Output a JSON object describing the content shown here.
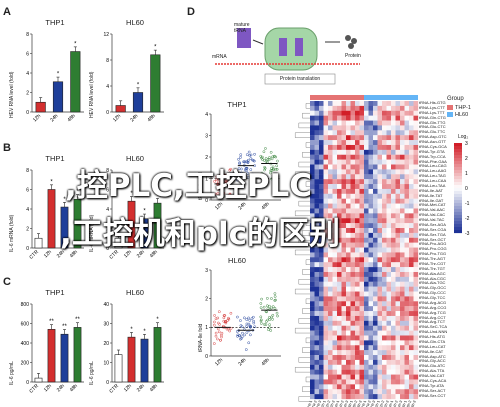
{
  "panels": {
    "A": {
      "label": "A",
      "thp1": {
        "title": "THP1",
        "ylabel": "HEV RNA level (fold)",
        "categories": [
          "12h",
          "24h",
          "48h"
        ],
        "values": [
          1.0,
          3.1,
          6.2
        ],
        "ylim": [
          0,
          8
        ],
        "yticks": [
          "0",
          "2",
          "4",
          "6",
          "8"
        ],
        "colors": [
          "#d32f2f",
          "#1f3f9a",
          "#2e7d32"
        ],
        "stars": [
          "",
          "*",
          "*"
        ]
      },
      "hl60": {
        "title": "HL60",
        "ylabel": "HEV RNA level (fold)",
        "categories": [
          "12h",
          "24h",
          "48h"
        ],
        "values": [
          1.0,
          3.0,
          8.8
        ],
        "ylim": [
          0,
          12
        ],
        "yticks": [
          "0",
          "4",
          "8",
          "12"
        ],
        "colors": [
          "#d32f2f",
          "#1f3f9a",
          "#2e7d32"
        ],
        "stars": [
          "",
          "*",
          "*"
        ]
      }
    },
    "B": {
      "label": "B",
      "thp1": {
        "title": "THP1",
        "ylabel": "IL-6 mRNA (fold)",
        "categories": [
          "CTR",
          "12h",
          "24h",
          "48h"
        ],
        "values": [
          1.0,
          6.0,
          4.2,
          5.0
        ],
        "ylim": [
          0,
          8
        ],
        "yticks": [
          "0",
          "2",
          "4",
          "6",
          "8"
        ],
        "colors": [
          "#ffffff",
          "#d32f2f",
          "#1f3f9a",
          "#2e7d32"
        ],
        "stars": [
          "",
          "*",
          "*",
          "*"
        ]
      },
      "hl60": {
        "title": "HL60",
        "ylabel": "IL-6 mRNA (fold)",
        "categories": [
          "CTR",
          "12h",
          "24h",
          "48h"
        ],
        "values": [
          1.0,
          4.8,
          3.0,
          4.6
        ],
        "ylim": [
          0,
          8
        ],
        "yticks": [
          "0",
          "2",
          "4",
          "6",
          "8"
        ],
        "colors": [
          "#ffffff",
          "#d32f2f",
          "#1f3f9a",
          "#2e7d32"
        ],
        "stars": [
          "",
          "*",
          "*",
          "*"
        ]
      }
    },
    "C": {
      "label": "C",
      "thp1": {
        "title": "THP1",
        "ylabel": "IL-6 pg/mL",
        "categories": [
          "CTR",
          "12h",
          "24h",
          "48h"
        ],
        "values": [
          40,
          540,
          490,
          560
        ],
        "ylim": [
          0,
          800
        ],
        "yticks": [
          "0",
          "200",
          "400",
          "600",
          "800"
        ],
        "colors": [
          "#ffffff",
          "#d32f2f",
          "#1f3f9a",
          "#2e7d32"
        ],
        "stars": [
          "",
          "**",
          "**",
          "**"
        ]
      },
      "hl60": {
        "title": "HL60",
        "ylabel": "IL-6 pg/mL",
        "categories": [
          "CTR",
          "12h",
          "24h",
          "48h"
        ],
        "values": [
          14,
          23,
          22,
          28
        ],
        "ylim": [
          0,
          40
        ],
        "yticks": [
          "0",
          "10",
          "20",
          "30",
          "40"
        ],
        "colors": [
          "#ffffff",
          "#d32f2f",
          "#1f3f9a",
          "#2e7d32"
        ],
        "stars": [
          "",
          "*",
          "*",
          "*"
        ]
      }
    },
    "D": {
      "label": "D",
      "diagram": {
        "tRNA_label": "mature tRNA",
        "mRNA_label": "mRNA",
        "protein_label": "Protein",
        "process_label": "Protein translation"
      },
      "dot_thp1": {
        "title": "THP1",
        "ylabel": "tRNA-Ile fold",
        "categories": [
          "12h",
          "24h",
          "48h"
        ],
        "yticks": [
          "0",
          "1",
          "2",
          "3",
          "4"
        ],
        "means": [
          0.75,
          1.6,
          1.7
        ],
        "colors": [
          "#d32f2f",
          "#1f3f9a",
          "#2e7d32"
        ]
      },
      "dot_hl60": {
        "title": "HL60",
        "ylabel": "tRNA-Ile fold",
        "categories": [
          "12h",
          "24h",
          "48h"
        ],
        "yticks": [
          "0",
          "1",
          "2",
          "3"
        ],
        "means": [
          1.0,
          0.9,
          1.6
        ],
        "colors": [
          "#d32f2f",
          "#1f3f9a",
          "#2e7d32"
        ]
      },
      "heatmap": {
        "legend_title": "Group",
        "groups": [
          {
            "name": "THP-1",
            "color": "#e57373"
          },
          {
            "name": "HL60",
            "color": "#64b5f6"
          }
        ],
        "scale_title": "Log₂",
        "scale_ticks": [
          "3",
          "2",
          "1",
          "0",
          "-1",
          "-2",
          "-3"
        ],
        "columns": [
          "CTR-1",
          "CTR-2",
          "CTR-3",
          "12h-1",
          "12h-2",
          "12h-3",
          "24h-1",
          "24h-2",
          "24h-3",
          "48h-1",
          "48h-2",
          "48h-3",
          "CTR-1",
          "CTR-2",
          "CTR-3",
          "12h-1",
          "12h-2",
          "12h-3",
          "24h-1",
          "24h-2",
          "24h-3",
          "48h-1",
          "48h-2",
          "48h-3"
        ],
        "genes": [
          "tRNA-His-GTG",
          "tRNA-Lys-CTT",
          "tRNA-Lys-TTT",
          "tRNA-Gln-CTG",
          "tRNA-Gln-TTG",
          "tRNA-Glu-CTC",
          "tRNA-Glu-TTC",
          "tRNA-Asp-GTC",
          "tRNA-Asn-GTT",
          "tRNA-Cys-GCA",
          "tRNA-Tyr-GTA",
          "tRNA-Trp-CCA",
          "tRNA-Phe-GAA",
          "tRNA-Leu-CAG",
          "tRNA-Leu-AAG",
          "tRNA-Leu-TAG",
          "tRNA-Leu-CAA",
          "tRNA-Leu-TAA",
          "tRNA-Ile-AAT",
          "tRNA-Ile-TAT",
          "tRNA-Ile-GAT",
          "tRNA-Met-CAT",
          "tRNA-Val-AAC",
          "tRNA-Val-CAC",
          "tRNA-Val-TAC",
          "tRNA-Ser-AGA",
          "tRNA-Ser-CGA",
          "tRNA-Ser-TGA",
          "tRNA-Ser-GCT",
          "tRNA-Pro-AGG",
          "tRNA-Pro-CGG",
          "tRNA-Pro-TGG",
          "tRNA-Thr-AGT",
          "tRNA-Thr-CGT",
          "tRNA-Thr-TGT",
          "tRNA-Ala-AGC",
          "tRNA-Ala-CGC",
          "tRNA-Ala-TGC",
          "tRNA-Gly-GCC",
          "tRNA-Gly-CCC",
          "tRNA-Gly-TCC",
          "tRNA-Arg-ACG",
          "tRNA-Arg-CCG",
          "tRNA-Arg-TCG",
          "tRNA-Arg-CCT",
          "tRNA-Arg-TCT",
          "tRNA-SeC-TCA",
          "tRNA-Und-NNN",
          "tRNA-His-ATG",
          "tRNA-Gln-CTA",
          "tRNA-Leu-CAT",
          "tRNA-Ile-CAT",
          "tRNA-Asp-ATC",
          "tRNA-Gly-ACC",
          "tRNA-Glu-ATC",
          "tRNA-Ala-TTA",
          "tRNA-Val-CAT",
          "tRNA-Cys-ACA",
          "tRNA-Tyr-ATA",
          "tRNA-Ser-ACT",
          "tRNA-Ser-CCT"
        ]
      }
    }
  },
  "overlay": {
    "line1": ",控PLC,工控PLC",
    "line2": ",工控机和plc的区别"
  }
}
